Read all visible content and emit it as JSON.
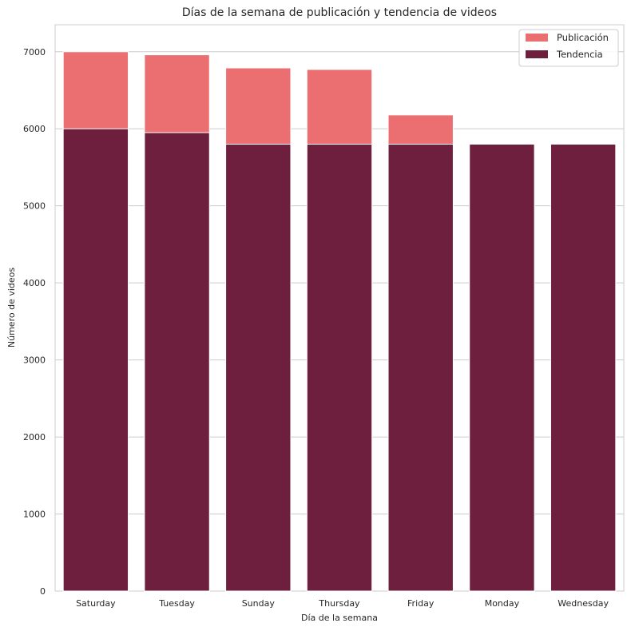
{
  "chart_data": {
    "type": "bar",
    "title": "Días de la semana de publicación y tendencia de videos",
    "xlabel": "Día de la semana",
    "ylabel": "Número de videos",
    "categories": [
      "Saturday",
      "Tuesday",
      "Sunday",
      "Thursday",
      "Friday",
      "Monday",
      "Wednesday"
    ],
    "series": [
      {
        "name": "Publicación",
        "values": [
          7000,
          6960,
          6790,
          6770,
          6180,
          5700,
          5600
        ],
        "color": "#eb6f71"
      },
      {
        "name": "Tendencia",
        "values": [
          6000,
          5950,
          5800,
          5800,
          5800,
          5800,
          5800
        ],
        "color": "#6d1f3d"
      }
    ],
    "ylim": [
      0,
      7350
    ],
    "yticks": [
      0,
      1000,
      2000,
      3000,
      4000,
      5000,
      6000,
      7000
    ],
    "grid": true,
    "legend": "top-right",
    "overlap": true
  }
}
